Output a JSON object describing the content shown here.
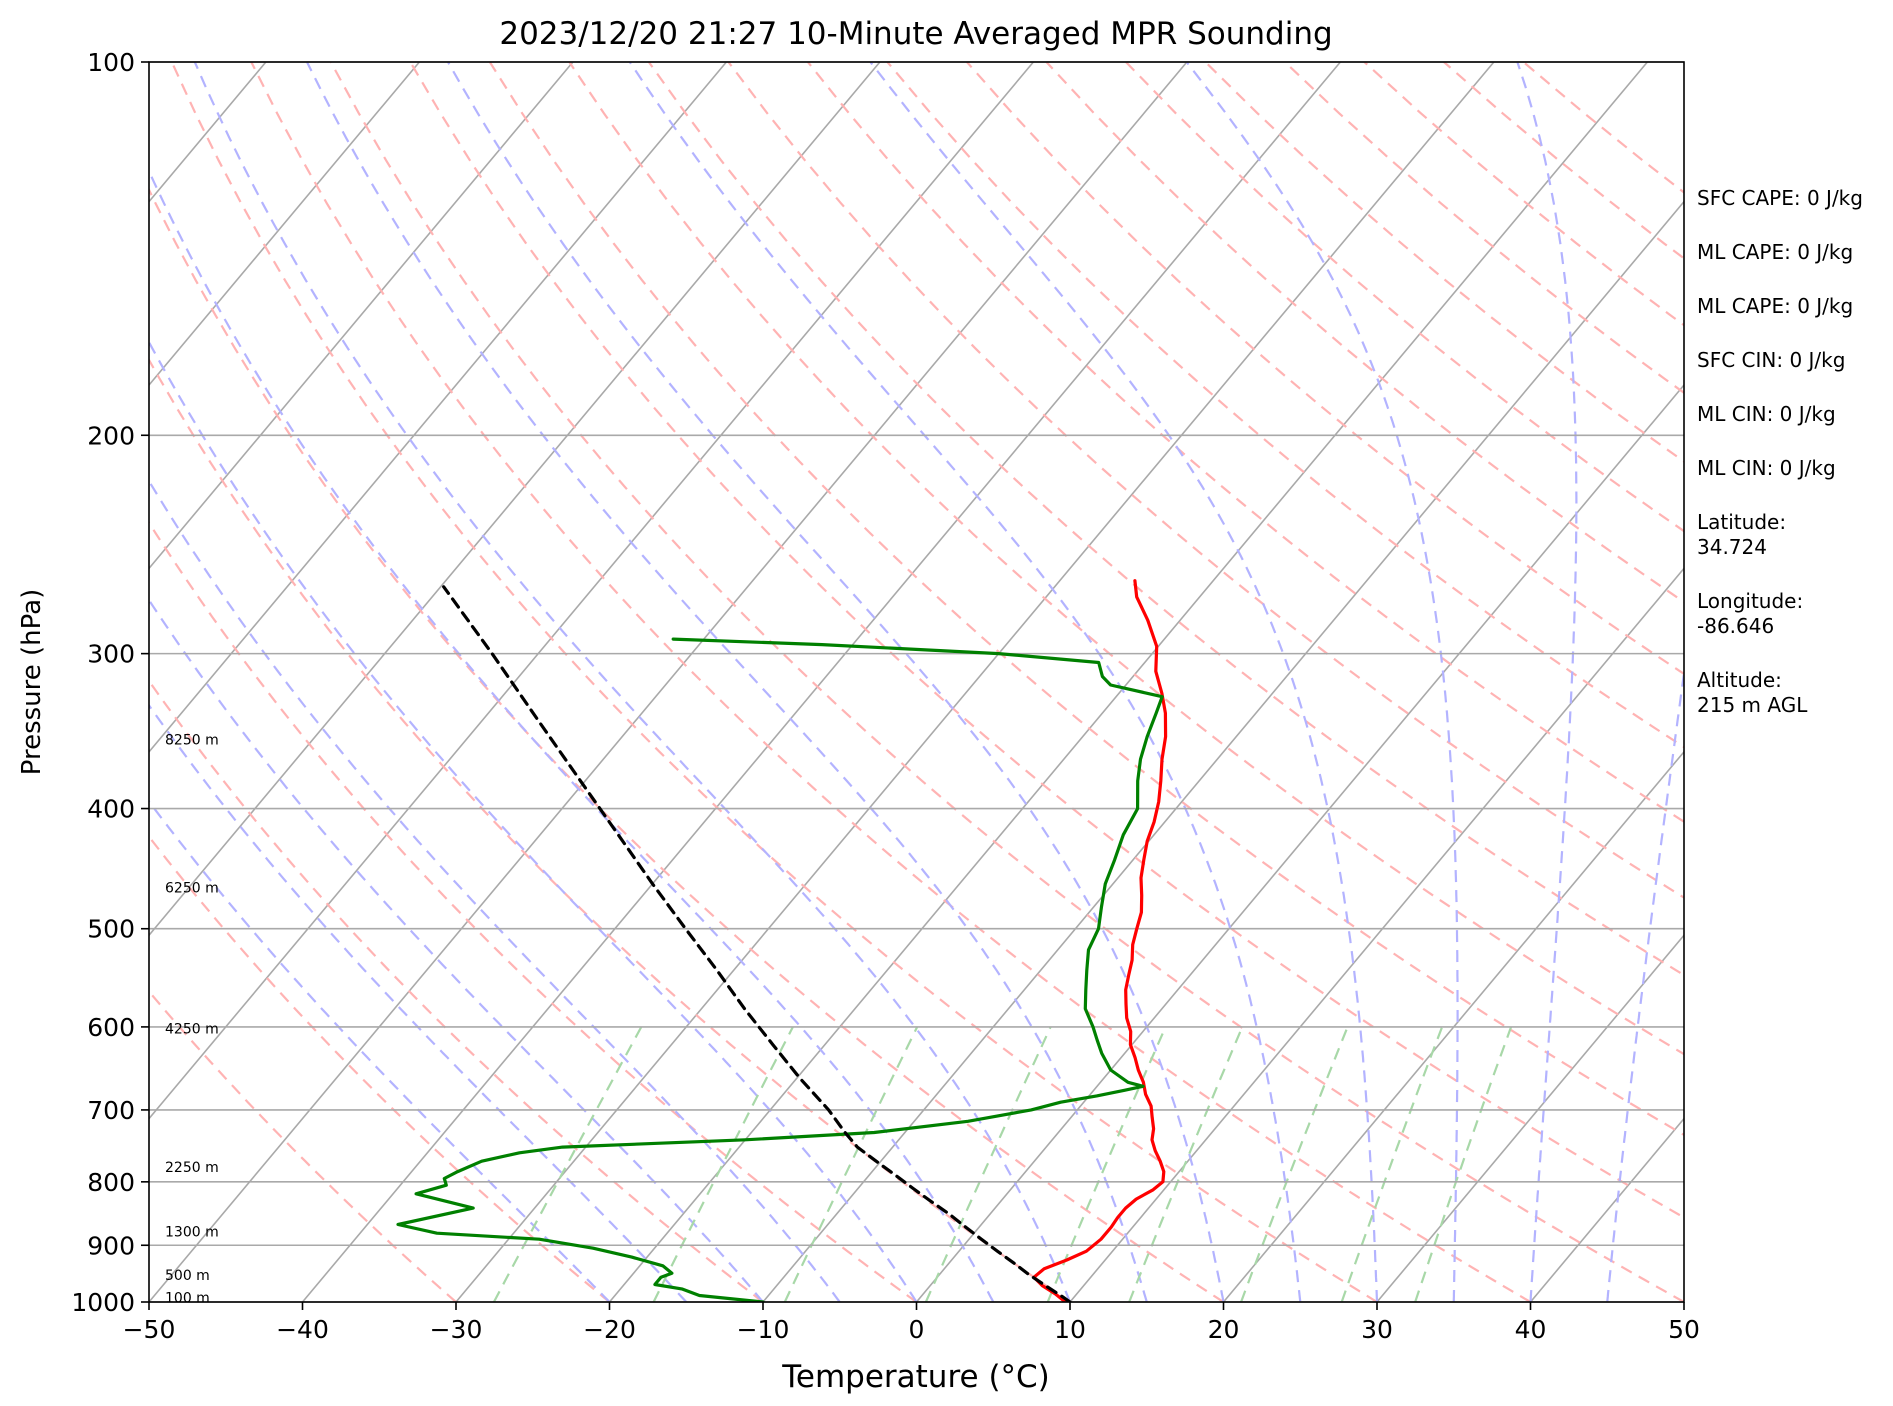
{
  "chart_data": {
    "type": "line",
    "chart_kind": "skew-T log-P sounding",
    "title": "2023/12/20 21:27 10-Minute Averaged MPR Sounding",
    "xlabel": "Temperature (°C)",
    "ylabel": "Pressure (hPa)",
    "xlim": [
      -50,
      50
    ],
    "ylim": [
      1000,
      100
    ],
    "y_scale": "log",
    "x_ticks": [
      -50,
      -40,
      -30,
      -20,
      -10,
      0,
      10,
      20,
      30,
      40,
      50
    ],
    "x_tick_labels": [
      "−50",
      "−40",
      "−30",
      "−20",
      "−10",
      "0",
      "10",
      "20",
      "30",
      "40",
      "50"
    ],
    "y_ticks": [
      100,
      200,
      300,
      400,
      500,
      600,
      700,
      800,
      900,
      1000
    ],
    "y_tick_labels": [
      "100",
      "200",
      "300",
      "400",
      "500",
      "600",
      "700",
      "800",
      "900",
      "1000"
    ],
    "grid": true,
    "background_lines": {
      "isotherm_color": "#a9a9a9",
      "dry_adiabat_color": "#ffb3b3",
      "moist_adiabat_color": "#b3b3ff",
      "mixing_ratio_color": "#a8d8a8"
    },
    "series": [
      {
        "role": "temperature",
        "color": "#ff0000",
        "points": [
          [
            1000,
            9.7
          ],
          [
            985,
            8.6
          ],
          [
            970,
            7.3
          ],
          [
            955,
            6.3
          ],
          [
            940,
            6.5
          ],
          [
            925,
            7.5
          ],
          [
            910,
            8.3
          ],
          [
            890,
            8.6
          ],
          [
            870,
            8.6
          ],
          [
            855,
            8.5
          ],
          [
            840,
            8.5
          ],
          [
            826,
            8.7
          ],
          [
            812,
            9.3
          ],
          [
            800,
            9.5
          ],
          [
            785,
            9.0
          ],
          [
            770,
            8.2
          ],
          [
            755,
            7.3
          ],
          [
            740,
            6.5
          ],
          [
            725,
            6.0
          ],
          [
            710,
            5.3
          ],
          [
            695,
            4.6
          ],
          [
            680,
            3.6
          ],
          [
            665,
            2.8
          ],
          [
            650,
            1.8
          ],
          [
            635,
            0.9
          ],
          [
            620,
            -0.1
          ],
          [
            605,
            -0.8
          ],
          [
            590,
            -1.8
          ],
          [
            575,
            -2.6
          ],
          [
            560,
            -3.4
          ],
          [
            545,
            -4.0
          ],
          [
            530,
            -4.6
          ],
          [
            515,
            -5.4
          ],
          [
            500,
            -6.0
          ],
          [
            485,
            -6.6
          ],
          [
            470,
            -7.5
          ],
          [
            455,
            -8.5
          ],
          [
            440,
            -9.3
          ],
          [
            425,
            -10.1
          ],
          [
            410,
            -10.7
          ],
          [
            395,
            -11.5
          ],
          [
            380,
            -12.5
          ],
          [
            365,
            -13.6
          ],
          [
            350,
            -14.6
          ],
          [
            335,
            -15.9
          ],
          [
            323,
            -17.2
          ],
          [
            310,
            -18.8
          ],
          [
            296,
            -20.1
          ],
          [
            282,
            -22.1
          ],
          [
            270,
            -24.1
          ],
          [
            262,
            -25.1
          ]
        ]
      },
      {
        "role": "dewpoint",
        "color": "#008000",
        "points": [
          [
            1000,
            -10.0
          ],
          [
            988,
            -14.5
          ],
          [
            976,
            -16.0
          ],
          [
            968,
            -18.0
          ],
          [
            955,
            -18.0
          ],
          [
            948,
            -17.5
          ],
          [
            935,
            -18.5
          ],
          [
            920,
            -21.0
          ],
          [
            905,
            -24.0
          ],
          [
            890,
            -28.0
          ],
          [
            880,
            -35.0
          ],
          [
            866,
            -38.0
          ],
          [
            840,
            -34.0
          ],
          [
            818,
            -38.5
          ],
          [
            805,
            -37.0
          ],
          [
            795,
            -37.5
          ],
          [
            785,
            -37.0
          ],
          [
            770,
            -36.0
          ],
          [
            758,
            -34.0
          ],
          [
            750,
            -31.5
          ],
          [
            740,
            -20.0
          ],
          [
            730,
            -12.0
          ],
          [
            715,
            -6.5
          ],
          [
            700,
            -3.0
          ],
          [
            690,
            -1.5
          ],
          [
            682,
            0.5
          ],
          [
            675,
            2.0
          ],
          [
            670,
            3.0
          ],
          [
            665,
            1.8
          ],
          [
            650,
            0.0
          ],
          [
            630,
            -1.5
          ],
          [
            615,
            -2.5
          ],
          [
            600,
            -3.5
          ],
          [
            580,
            -5.0
          ],
          [
            560,
            -6.0
          ],
          [
            540,
            -7.0
          ],
          [
            520,
            -8.0
          ],
          [
            500,
            -8.5
          ],
          [
            480,
            -9.5
          ],
          [
            460,
            -10.5
          ],
          [
            440,
            -11.2
          ],
          [
            420,
            -12.0
          ],
          [
            400,
            -12.5
          ],
          [
            380,
            -14.0
          ],
          [
            365,
            -15.0
          ],
          [
            350,
            -15.8
          ],
          [
            335,
            -16.5
          ],
          [
            325,
            -17.0
          ],
          [
            318,
            -21.0
          ],
          [
            313,
            -22.0
          ],
          [
            305,
            -23.0
          ],
          [
            300,
            -30.0
          ],
          [
            295,
            -42.0
          ],
          [
            292,
            -52.0
          ]
        ]
      },
      {
        "role": "parcel",
        "color": "#000000",
        "style": "dashed",
        "points": [
          [
            1000,
            10.0
          ],
          [
            990,
            9.2
          ],
          [
            970,
            7.5
          ],
          [
            950,
            5.8
          ],
          [
            930,
            4.2
          ],
          [
            910,
            2.5
          ],
          [
            890,
            0.8
          ],
          [
            870,
            -0.9
          ],
          [
            850,
            -2.6
          ],
          [
            830,
            -4.5
          ],
          [
            810,
            -6.4
          ],
          [
            790,
            -8.3
          ],
          [
            770,
            -10.3
          ],
          [
            750,
            -12.3
          ],
          [
            730,
            -13.9
          ],
          [
            700,
            -16.2
          ],
          [
            660,
            -19.8
          ],
          [
            620,
            -23.4
          ],
          [
            580,
            -27.2
          ],
          [
            540,
            -31.1
          ],
          [
            500,
            -35.4
          ],
          [
            460,
            -40.0
          ],
          [
            420,
            -44.9
          ],
          [
            380,
            -50.3
          ],
          [
            340,
            -56.3
          ],
          [
            300,
            -63.0
          ],
          [
            265,
            -69.8
          ]
        ]
      }
    ],
    "height_labels": [
      {
        "label": "8250 m",
        "p": 352
      },
      {
        "label": "6250 m",
        "p": 463
      },
      {
        "label": "4250 m",
        "p": 602
      },
      {
        "label": "2250 m",
        "p": 778
      },
      {
        "label": "1300 m",
        "p": 877
      },
      {
        "label": "500 m",
        "p": 951
      },
      {
        "label": "100 m",
        "p": 992
      }
    ]
  },
  "side_info": {
    "sfc_cape": "SFC CAPE: 0 J/kg",
    "ml_cape_1": "ML CAPE: 0 J/kg",
    "ml_cape_2": "ML CAPE: 0 J/kg",
    "sfc_cin": "SFC CIN: 0 J/kg",
    "ml_cin_1": "ML CIN: 0 J/kg",
    "ml_cin_2": "ML CIN: 0 J/kg",
    "lat_label": "Latitude:",
    "lat_value": "34.724",
    "lon_label": "Longitude:",
    "lon_value": "-86.646",
    "alt_label": "Altitude:",
    "alt_value": "215 m AGL"
  }
}
